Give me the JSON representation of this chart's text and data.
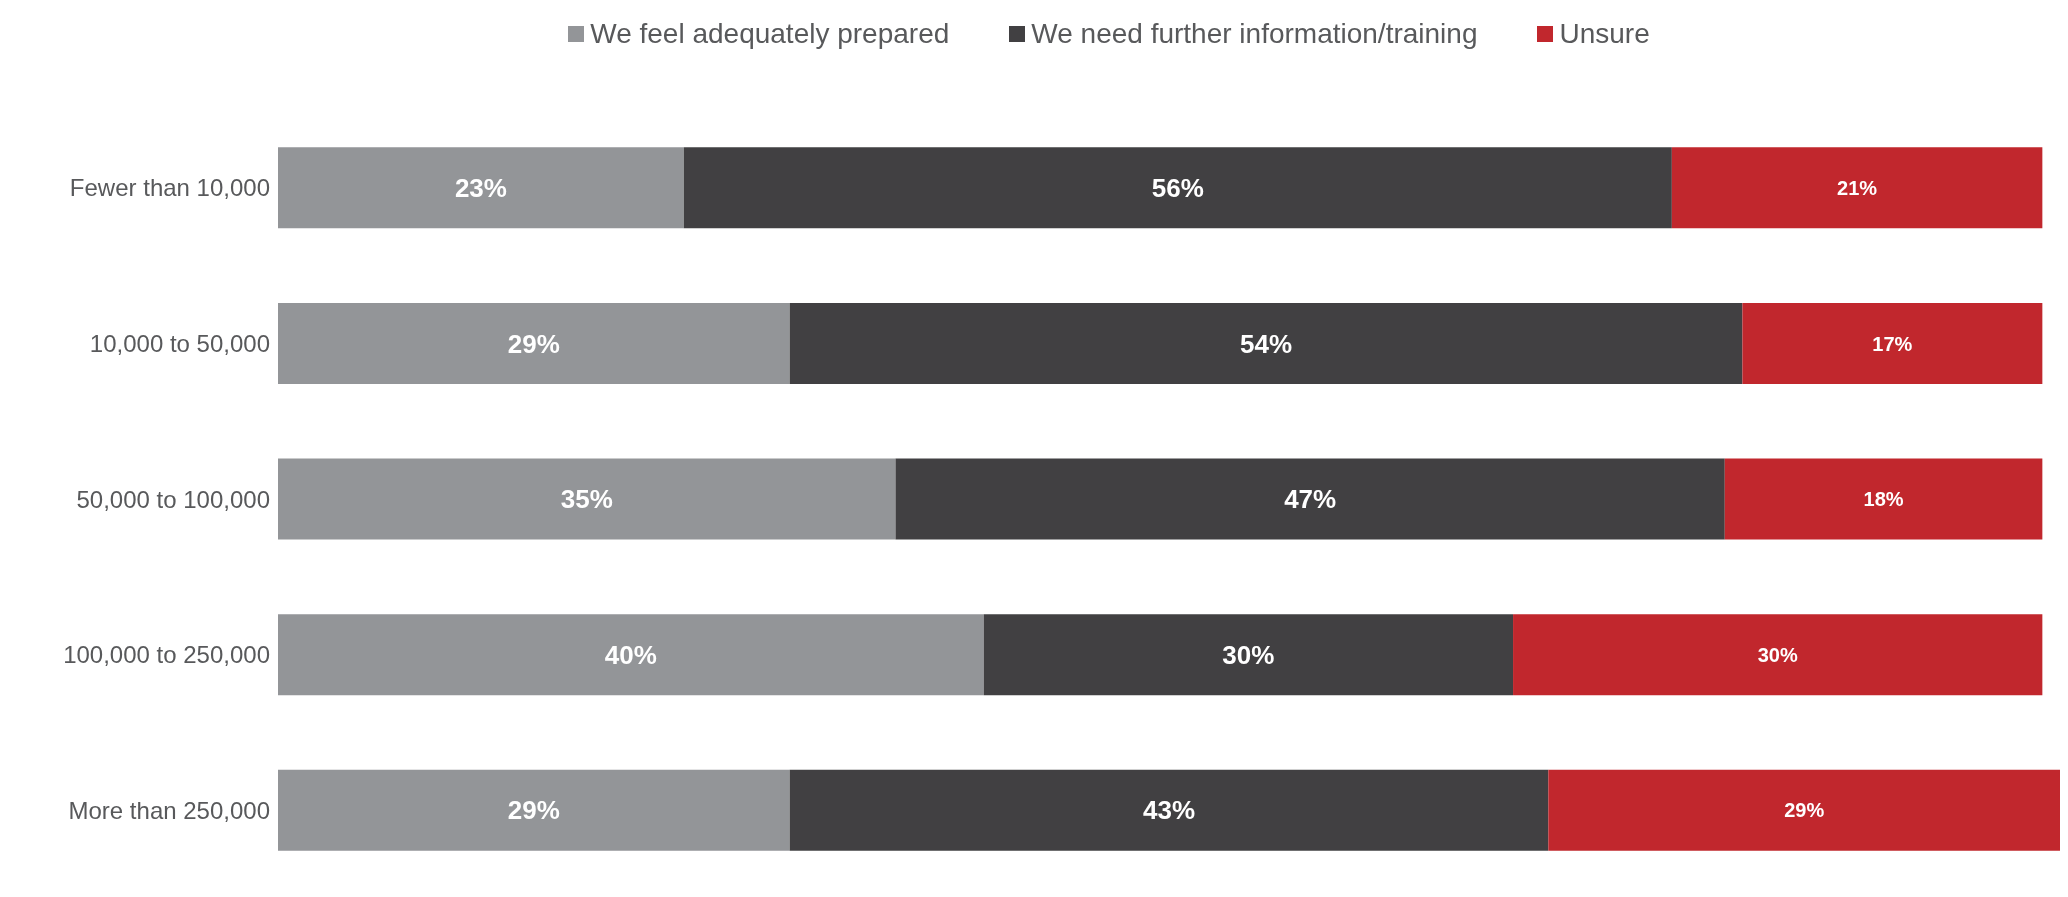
{
  "chart_data": {
    "type": "bar",
    "orientation": "horizontal",
    "stacked": true,
    "legend": "top",
    "categories": [
      "Fewer than 10,000",
      "10,000 to 50,000",
      "50,000 to 100,000",
      "100,000 to 250,000",
      "More than 250,000"
    ],
    "series": [
      {
        "name": "We feel adequately prepared",
        "color": "#939598",
        "values": [
          23,
          29,
          35,
          40,
          29
        ],
        "value_labels": [
          "23%",
          "29%",
          "35%",
          "40%",
          "29%"
        ]
      },
      {
        "name": "We need further information/training",
        "color": "#414042",
        "values": [
          56,
          54,
          47,
          30,
          43
        ],
        "value_labels": [
          "56%",
          "54%",
          "47%",
          "30%",
          "43%"
        ]
      },
      {
        "name": "Unsure",
        "color": "#c1272d",
        "values": [
          21,
          17,
          18,
          30,
          29
        ],
        "value_labels": [
          "21%",
          "17%",
          "18%",
          "30%",
          "29%"
        ]
      }
    ]
  }
}
